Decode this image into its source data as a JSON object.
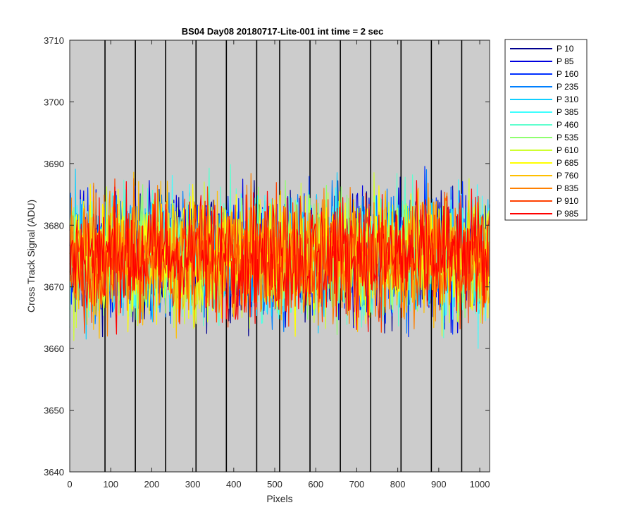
{
  "chart_data": {
    "type": "line",
    "title": "BS04 Day08 20180717-Lite-001 int time = 2 sec",
    "xlabel": "Pixels",
    "ylabel": "Cross Track Signal (ADU)",
    "xlim": [
      0,
      1024
    ],
    "ylim": [
      3640,
      3710
    ],
    "xticks": [
      "0",
      "100",
      "200",
      "300",
      "400",
      "500",
      "600",
      "700",
      "800",
      "900",
      "1000"
    ],
    "yticks": [
      "3640",
      "3650",
      "3660",
      "3670",
      "3680",
      "3690",
      "3700",
      "3710"
    ],
    "background_color": "#cccccc",
    "vertical_separators_x": [
      86,
      160,
      234,
      308,
      382,
      456,
      512,
      586,
      660,
      734,
      808,
      882,
      956
    ],
    "noise_center": 3675,
    "noise_amplitude": 9,
    "legend_position": "outside-right",
    "series": [
      {
        "name": "P 10",
        "color": "#00008f"
      },
      {
        "name": "P 85",
        "color": "#0000df"
      },
      {
        "name": "P 160",
        "color": "#0030ff"
      },
      {
        "name": "P 235",
        "color": "#0080ff"
      },
      {
        "name": "P 310",
        "color": "#10cfff"
      },
      {
        "name": "P 385",
        "color": "#3fffff"
      },
      {
        "name": "P 460",
        "color": "#60ffcf"
      },
      {
        "name": "P 535",
        "color": "#8fff70"
      },
      {
        "name": "P 610",
        "color": "#cfff30"
      },
      {
        "name": "P 685",
        "color": "#ffff00"
      },
      {
        "name": "P 760",
        "color": "#ffbf00"
      },
      {
        "name": "P 835",
        "color": "#ff8000"
      },
      {
        "name": "P 910",
        "color": "#ff4000"
      },
      {
        "name": "P 985",
        "color": "#ff0000"
      }
    ]
  }
}
